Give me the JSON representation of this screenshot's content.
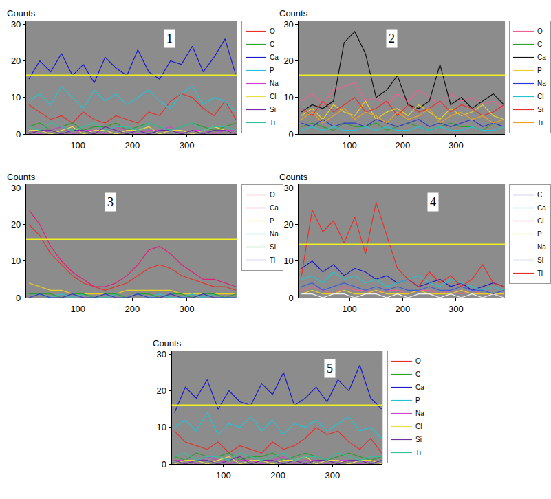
{
  "chart_data": [
    {
      "type": "line",
      "title": "1",
      "y_label": "Counts",
      "grid": false,
      "legend": "right",
      "xlim": [
        5,
        392
      ],
      "ylim": [
        0,
        31
      ],
      "xticks": [
        100,
        200,
        300
      ],
      "yticks": [
        0,
        10,
        20,
        30
      ],
      "reference_line": 16,
      "x": [
        10,
        30,
        50,
        70,
        90,
        110,
        130,
        150,
        170,
        190,
        210,
        230,
        250,
        270,
        290,
        310,
        330,
        350,
        370,
        390
      ],
      "series": [
        {
          "name": "O",
          "color": "#e8302a",
          "values": [
            8,
            6,
            4,
            5,
            3,
            6,
            4,
            3,
            5,
            4,
            3,
            6,
            5,
            9,
            11,
            10,
            7,
            5,
            9,
            4
          ]
        },
        {
          "name": "C",
          "color": "#2ca02c",
          "values": [
            2,
            3,
            1,
            2,
            3,
            1,
            2,
            2,
            3,
            1,
            2,
            3,
            2,
            1,
            2,
            3,
            2,
            1,
            2,
            3
          ]
        },
        {
          "name": "Ca",
          "color": "#1a1acc",
          "values": [
            15,
            20,
            17,
            22,
            16,
            19,
            14,
            21,
            18,
            16,
            23,
            17,
            15,
            20,
            19,
            24,
            17,
            21,
            26,
            16
          ]
        },
        {
          "name": "P",
          "color": "#22c4d4",
          "values": [
            9,
            11,
            8,
            13,
            10,
            7,
            12,
            9,
            11,
            8,
            10,
            12,
            9,
            7,
            11,
            13,
            8,
            10,
            9,
            6
          ]
        },
        {
          "name": "Na",
          "color": "#d040d0",
          "values": [
            1,
            0,
            1,
            2,
            0,
            1,
            1,
            0,
            2,
            1,
            0,
            1,
            1,
            2,
            0,
            1,
            1,
            0,
            1,
            1
          ]
        },
        {
          "name": "Cl",
          "color": "#e8e040",
          "values": [
            1,
            1,
            0,
            1,
            2,
            0,
            1,
            1,
            0,
            1,
            1,
            2,
            0,
            1,
            1,
            0,
            1,
            2,
            1,
            0
          ]
        },
        {
          "name": "Si",
          "color": "#7030a0",
          "values": [
            0,
            1,
            1,
            0,
            1,
            1,
            0,
            2,
            1,
            0,
            1,
            0,
            1,
            1,
            0,
            1,
            0,
            1,
            1,
            0
          ]
        },
        {
          "name": "Ti",
          "color": "#30c0a0",
          "values": [
            2,
            1,
            3,
            2,
            1,
            2,
            3,
            1,
            2,
            2,
            1,
            3,
            2,
            1,
            2,
            3,
            1,
            2,
            2,
            1
          ]
        }
      ]
    },
    {
      "type": "line",
      "title": "2",
      "y_label": "Counts",
      "grid": false,
      "legend": "right",
      "xlim": [
        5,
        392
      ],
      "ylim": [
        0,
        31
      ],
      "xticks": [
        100,
        200,
        300
      ],
      "yticks": [
        0,
        10,
        20,
        30
      ],
      "reference_line": 16,
      "x": [
        10,
        30,
        50,
        70,
        90,
        110,
        130,
        150,
        170,
        190,
        210,
        230,
        250,
        270,
        290,
        310,
        330,
        350,
        370,
        390
      ],
      "series": [
        {
          "name": "O",
          "color": "#f06090",
          "values": [
            9,
            11,
            8,
            12,
            13,
            14,
            9,
            10,
            8,
            11,
            9,
            12,
            10,
            8,
            11,
            9,
            10,
            8,
            9,
            7
          ]
        },
        {
          "name": "C",
          "color": "#2ca02c",
          "values": [
            2,
            3,
            2,
            1,
            3,
            2,
            2,
            3,
            1,
            2,
            3,
            2,
            1,
            2,
            3,
            2,
            2,
            1,
            3,
            2
          ]
        },
        {
          "name": "Ca",
          "color": "#111111",
          "values": [
            6,
            8,
            7,
            9,
            25,
            28,
            22,
            10,
            12,
            16,
            8,
            7,
            9,
            19,
            8,
            10,
            7,
            9,
            11,
            8
          ]
        },
        {
          "name": "P",
          "color": "#e8d020",
          "values": [
            5,
            7,
            4,
            8,
            6,
            5,
            9,
            4,
            6,
            7,
            5,
            8,
            6,
            4,
            7,
            5,
            6,
            8,
            5,
            4
          ]
        },
        {
          "name": "Na",
          "color": "#2a3ad0",
          "values": [
            3,
            2,
            4,
            2,
            3,
            3,
            2,
            4,
            3,
            2,
            3,
            4,
            2,
            3,
            2,
            3,
            4,
            2,
            3,
            2
          ]
        },
        {
          "name": "Cl",
          "color": "#22c4d4",
          "values": [
            1,
            2,
            1,
            2,
            1,
            1,
            2,
            1,
            2,
            1,
            1,
            2,
            1,
            2,
            1,
            1,
            2,
            1,
            1,
            2
          ]
        },
        {
          "name": "Si",
          "color": "#e8302a",
          "values": [
            7,
            5,
            9,
            6,
            8,
            10,
            6,
            7,
            9,
            5,
            8,
            6,
            7,
            9,
            6,
            8,
            7,
            5,
            6,
            8
          ]
        },
        {
          "name": "Ti",
          "color": "#f0a020",
          "values": [
            4,
            6,
            3,
            5,
            7,
            4,
            6,
            5,
            3,
            6,
            4,
            5,
            7,
            3,
            5,
            6,
            4,
            5,
            3,
            4
          ]
        }
      ]
    },
    {
      "type": "line",
      "title": "3",
      "y_label": "Counts",
      "grid": false,
      "legend": "right",
      "xlim": [
        5,
        392
      ],
      "ylim": [
        0,
        31
      ],
      "xticks": [
        100,
        200,
        300
      ],
      "yticks": [
        0,
        10,
        20,
        30
      ],
      "reference_line": 16,
      "x": [
        10,
        30,
        50,
        70,
        90,
        110,
        130,
        150,
        170,
        190,
        210,
        230,
        250,
        270,
        290,
        310,
        330,
        350,
        370,
        390
      ],
      "series": [
        {
          "name": "O",
          "color": "#e8302a",
          "values": [
            20,
            17,
            12,
            9,
            6,
            4,
            3,
            2,
            3,
            4,
            6,
            8,
            9,
            8,
            6,
            5,
            4,
            3,
            3,
            2
          ]
        },
        {
          "name": "Ca",
          "color": "#e0207a",
          "values": [
            24,
            20,
            14,
            10,
            7,
            5,
            3,
            3,
            4,
            6,
            9,
            13,
            14,
            12,
            9,
            7,
            5,
            5,
            4,
            3
          ]
        },
        {
          "name": "P",
          "color": "#e8d020",
          "values": [
            4,
            3,
            2,
            2,
            1,
            1,
            1,
            1,
            1,
            2,
            2,
            2,
            2,
            2,
            1,
            1,
            1,
            1,
            1,
            1
          ]
        },
        {
          "name": "Na",
          "color": "#22c4d4",
          "values": [
            1,
            1,
            0,
            1,
            0,
            1,
            0,
            0,
            1,
            0,
            1,
            0,
            1,
            0,
            0,
            1,
            0,
            1,
            0,
            0
          ]
        },
        {
          "name": "Si",
          "color": "#2ca02c",
          "values": [
            1,
            1,
            1,
            0,
            1,
            1,
            0,
            1,
            1,
            0,
            1,
            1,
            0,
            1,
            1,
            0,
            1,
            1,
            0,
            1
          ]
        },
        {
          "name": "Ti",
          "color": "#3a3ad0",
          "values": [
            0,
            1,
            0,
            0,
            1,
            0,
            0,
            1,
            0,
            0,
            1,
            0,
            0,
            1,
            0,
            0,
            1,
            0,
            0,
            0
          ]
        }
      ]
    },
    {
      "type": "line",
      "title": "4",
      "y_label": "Counts",
      "grid": false,
      "legend": "right",
      "xlim": [
        5,
        392
      ],
      "ylim": [
        0,
        31
      ],
      "xticks": [
        100,
        200,
        300
      ],
      "yticks": [
        0,
        10,
        20,
        30
      ],
      "reference_line": 14.5,
      "x": [
        10,
        30,
        50,
        70,
        90,
        110,
        130,
        150,
        170,
        190,
        210,
        230,
        250,
        270,
        290,
        310,
        330,
        350,
        370,
        390
      ],
      "series": [
        {
          "name": "C",
          "color": "#1a1acc",
          "values": [
            8,
            10,
            7,
            9,
            6,
            8,
            7,
            5,
            6,
            4,
            5,
            3,
            4,
            5,
            3,
            4,
            2,
            3,
            4,
            3
          ]
        },
        {
          "name": "Ca",
          "color": "#22c4d4",
          "values": [
            5,
            6,
            4,
            7,
            5,
            6,
            4,
            5,
            3,
            4,
            5,
            6,
            4,
            3,
            5,
            4,
            3,
            2,
            3,
            2
          ]
        },
        {
          "name": "Cl",
          "color": "#f06090",
          "values": [
            2,
            3,
            2,
            1,
            3,
            2,
            2,
            1,
            2,
            2,
            1,
            2,
            2,
            1,
            2,
            1,
            2,
            1,
            1,
            1
          ]
        },
        {
          "name": "P",
          "color": "#e8d020",
          "values": [
            1,
            2,
            1,
            1,
            2,
            1,
            1,
            2,
            1,
            1,
            1,
            2,
            1,
            1,
            1,
            2,
            1,
            1,
            1,
            1
          ]
        },
        {
          "name": "Na",
          "color": "#f0f0f0",
          "values": [
            1,
            1,
            0,
            1,
            1,
            0,
            1,
            1,
            0,
            1,
            0,
            1,
            1,
            0,
            1,
            0,
            1,
            0,
            1,
            0
          ]
        },
        {
          "name": "Si",
          "color": "#3a5ae0",
          "values": [
            3,
            4,
            2,
            3,
            4,
            3,
            2,
            3,
            2,
            3,
            2,
            2,
            3,
            2,
            2,
            3,
            2,
            2,
            1,
            2
          ]
        },
        {
          "name": "Ti",
          "color": "#e8302a",
          "values": [
            6,
            24,
            18,
            21,
            15,
            22,
            12,
            26,
            17,
            8,
            5,
            3,
            7,
            4,
            6,
            3,
            5,
            9,
            4,
            3
          ]
        }
      ]
    },
    {
      "type": "line",
      "title": "5",
      "y_label": "Counts",
      "grid": false,
      "legend": "right",
      "xlim": [
        5,
        392
      ],
      "ylim": [
        0,
        31
      ],
      "xticks": [
        100,
        200,
        300
      ],
      "yticks": [
        0,
        10,
        20,
        30
      ],
      "reference_line": 16,
      "x": [
        10,
        30,
        50,
        70,
        90,
        110,
        130,
        150,
        170,
        190,
        210,
        230,
        250,
        270,
        290,
        310,
        330,
        350,
        370,
        390
      ],
      "series": [
        {
          "name": "O",
          "color": "#e8302a",
          "values": [
            9,
            6,
            5,
            4,
            6,
            3,
            5,
            4,
            3,
            6,
            4,
            5,
            7,
            10,
            8,
            9,
            6,
            4,
            7,
            3
          ]
        },
        {
          "name": "C",
          "color": "#2ca02c",
          "values": [
            2,
            1,
            3,
            2,
            2,
            3,
            1,
            2,
            2,
            3,
            1,
            2,
            3,
            2,
            1,
            2,
            3,
            2,
            1,
            2
          ]
        },
        {
          "name": "Ca",
          "color": "#1a1acc",
          "values": [
            14,
            21,
            18,
            23,
            15,
            20,
            17,
            16,
            22,
            19,
            25,
            16,
            18,
            21,
            17,
            23,
            20,
            27,
            18,
            15
          ]
        },
        {
          "name": "P",
          "color": "#22c4d4",
          "values": [
            10,
            12,
            9,
            14,
            8,
            11,
            10,
            13,
            9,
            12,
            8,
            11,
            10,
            12,
            9,
            11,
            13,
            9,
            10,
            7
          ]
        },
        {
          "name": "Na",
          "color": "#d040d0",
          "values": [
            1,
            1,
            0,
            2,
            1,
            0,
            1,
            1,
            0,
            1,
            2,
            0,
            1,
            1,
            0,
            1,
            1,
            0,
            1,
            0
          ]
        },
        {
          "name": "Cl",
          "color": "#e8e040",
          "values": [
            0,
            1,
            1,
            0,
            1,
            2,
            0,
            1,
            1,
            0,
            1,
            1,
            2,
            0,
            1,
            1,
            0,
            1,
            1,
            0
          ]
        },
        {
          "name": "Si",
          "color": "#7030a0",
          "values": [
            1,
            0,
            1,
            1,
            0,
            1,
            2,
            0,
            1,
            1,
            0,
            1,
            0,
            1,
            1,
            0,
            1,
            1,
            0,
            1
          ]
        },
        {
          "name": "Ti",
          "color": "#30c0a0",
          "values": [
            2,
            3,
            1,
            2,
            2,
            1,
            3,
            2,
            1,
            2,
            3,
            1,
            2,
            2,
            1,
            3,
            2,
            1,
            2,
            2
          ]
        }
      ]
    }
  ]
}
